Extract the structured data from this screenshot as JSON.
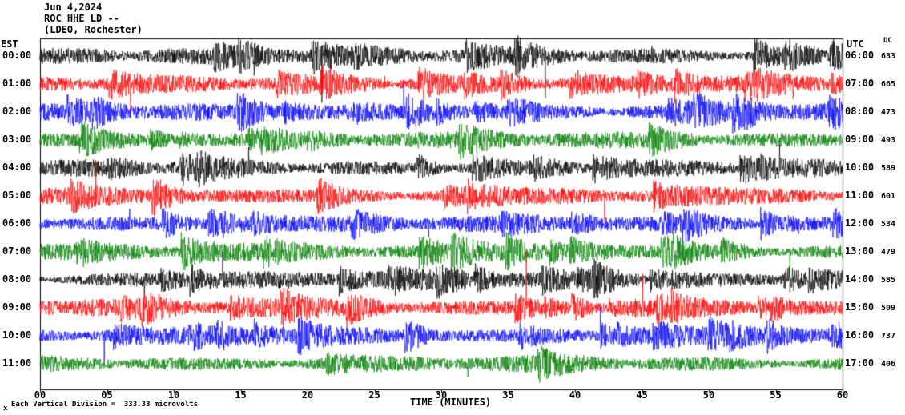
{
  "header": {
    "date": "Jun 4,2024",
    "station": "ROC HHE LD --",
    "location": "(LDEO, Rochester)"
  },
  "axes": {
    "left_label": "EST",
    "right_label": "UTC",
    "dc_label": "DC",
    "x_label": "TIME (MINUTES)",
    "x_ticks": [
      "00",
      "05",
      "10",
      "15",
      "20",
      "25",
      "30",
      "35",
      "40",
      "45",
      "50",
      "55",
      "60"
    ]
  },
  "footer": {
    "marker": "x",
    "scale_note": "Each Vertical Division =  333.33 microvolts"
  },
  "chart_data": {
    "type": "line",
    "title": "ROC HHE LD -- (LDEO, Rochester) Jun 4,2024",
    "xlabel": "TIME (MINUTES)",
    "x_range_minutes": [
      0,
      60
    ],
    "vertical_division_microvolts": 333.33,
    "description": "12-hour helicorder seismogram, one 60-minute trace per row of continuous high-amplitude seismic noise with intermittent bursts and spikes",
    "rows": [
      {
        "est": "00:00",
        "utc": "06:00",
        "dc": 633,
        "color": "#000000"
      },
      {
        "est": "01:00",
        "utc": "07:00",
        "dc": 665,
        "color": "#ff0000"
      },
      {
        "est": "02:00",
        "utc": "08:00",
        "dc": 473,
        "color": "#0000ff"
      },
      {
        "est": "03:00",
        "utc": "09:00",
        "dc": 493,
        "color": "#007f00"
      },
      {
        "est": "04:00",
        "utc": "10:00",
        "dc": 589,
        "color": "#000000"
      },
      {
        "est": "05:00",
        "utc": "11:00",
        "dc": 601,
        "color": "#ff0000"
      },
      {
        "est": "06:00",
        "utc": "12:00",
        "dc": 534,
        "color": "#0000ff"
      },
      {
        "est": "07:00",
        "utc": "13:00",
        "dc": 479,
        "color": "#007f00"
      },
      {
        "est": "08:00",
        "utc": "14:00",
        "dc": 585,
        "color": "#000000"
      },
      {
        "est": "09:00",
        "utc": "15:00",
        "dc": 509,
        "color": "#ff0000"
      },
      {
        "est": "10:00",
        "utc": "16:00",
        "dc": 737,
        "color": "#0000ff"
      },
      {
        "est": "11:00",
        "utc": "17:00",
        "dc": 406,
        "color": "#007f00"
      }
    ],
    "legend_position": "none",
    "grid": false
  }
}
